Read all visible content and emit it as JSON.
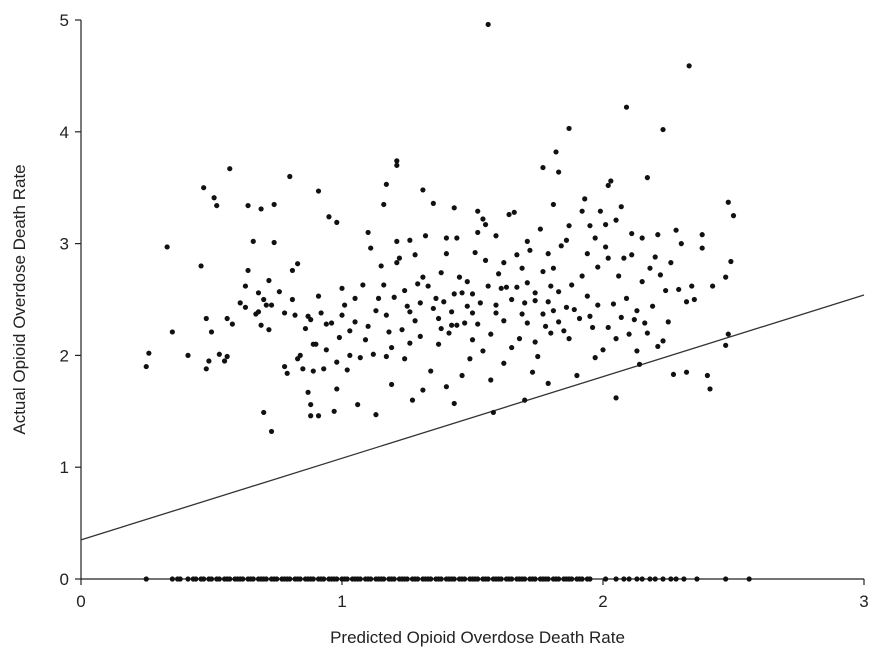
{
  "chart_data": {
    "type": "scatter",
    "title": "",
    "xlabel": "Predicted Opioid Overdose Death Rate",
    "ylabel": "Actual Opioid Overdose Death Rate",
    "xlim": [
      0,
      3
    ],
    "ylim": [
      0,
      5
    ],
    "x_ticks": [
      "0",
      "1",
      "2",
      "3"
    ],
    "y_ticks": [
      "0",
      "1",
      "2",
      "3",
      "4",
      "5"
    ],
    "grid": false,
    "legend": "none",
    "reference_line": {
      "x": [
        0,
        3
      ],
      "y": [
        0.35,
        2.54
      ]
    },
    "marker_color": "#111111",
    "line_color": "#333333",
    "points": [
      [
        0.25,
        1.9
      ],
      [
        0.26,
        2.02
      ],
      [
        0.33,
        2.97
      ],
      [
        0.35,
        2.21
      ],
      [
        0.41,
        2.0
      ],
      [
        0.46,
        2.8
      ],
      [
        0.47,
        3.5
      ],
      [
        0.48,
        2.33
      ],
      [
        0.48,
        1.88
      ],
      [
        0.49,
        1.95
      ],
      [
        0.5,
        2.21
      ],
      [
        0.51,
        3.41
      ],
      [
        0.52,
        3.34
      ],
      [
        0.53,
        2.01
      ],
      [
        0.55,
        1.95
      ],
      [
        0.56,
        1.99
      ],
      [
        0.56,
        2.33
      ],
      [
        0.57,
        3.67
      ],
      [
        0.58,
        2.28
      ],
      [
        0.61,
        2.47
      ],
      [
        0.63,
        2.43
      ],
      [
        0.63,
        2.62
      ],
      [
        0.64,
        3.34
      ],
      [
        0.64,
        2.76
      ],
      [
        0.66,
        3.02
      ],
      [
        0.67,
        2.37
      ],
      [
        0.68,
        2.56
      ],
      [
        0.68,
        2.39
      ],
      [
        0.69,
        3.31
      ],
      [
        0.69,
        2.27
      ],
      [
        0.7,
        1.49
      ],
      [
        0.7,
        2.5
      ],
      [
        0.71,
        2.45
      ],
      [
        0.72,
        2.23
      ],
      [
        0.72,
        2.67
      ],
      [
        0.73,
        2.45
      ],
      [
        0.73,
        1.32
      ],
      [
        0.74,
        3.01
      ],
      [
        0.74,
        3.35
      ],
      [
        0.76,
        2.57
      ],
      [
        0.78,
        2.38
      ],
      [
        0.78,
        1.9
      ],
      [
        0.79,
        1.84
      ],
      [
        0.8,
        3.6
      ],
      [
        0.81,
        2.76
      ],
      [
        0.81,
        2.5
      ],
      [
        0.82,
        2.36
      ],
      [
        0.83,
        2.82
      ],
      [
        0.83,
        1.97
      ],
      [
        0.84,
        2.0
      ],
      [
        0.85,
        1.88
      ],
      [
        0.86,
        2.24
      ],
      [
        0.87,
        2.35
      ],
      [
        0.87,
        1.67
      ],
      [
        0.88,
        1.56
      ],
      [
        0.88,
        1.46
      ],
      [
        0.88,
        2.32
      ],
      [
        0.89,
        2.1
      ],
      [
        0.89,
        1.86
      ],
      [
        0.9,
        2.1
      ],
      [
        0.91,
        2.53
      ],
      [
        0.91,
        3.47
      ],
      [
        0.91,
        1.46
      ],
      [
        0.92,
        2.38
      ],
      [
        0.93,
        1.88
      ],
      [
        0.94,
        2.28
      ],
      [
        0.94,
        2.05
      ],
      [
        0.95,
        3.24
      ],
      [
        0.96,
        2.29
      ],
      [
        0.97,
        1.5
      ],
      [
        0.98,
        1.94
      ],
      [
        0.98,
        1.7
      ],
      [
        0.98,
        3.19
      ],
      [
        0.99,
        2.16
      ],
      [
        1.0,
        2.36
      ],
      [
        1.0,
        2.6
      ],
      [
        1.01,
        2.45
      ],
      [
        1.02,
        1.87
      ],
      [
        1.03,
        2.22
      ],
      [
        1.03,
        2.0
      ],
      [
        1.05,
        2.3
      ],
      [
        1.05,
        2.51
      ],
      [
        1.06,
        1.56
      ],
      [
        1.07,
        1.98
      ],
      [
        1.08,
        2.63
      ],
      [
        1.09,
        2.14
      ],
      [
        1.1,
        2.26
      ],
      [
        1.1,
        3.1
      ],
      [
        1.11,
        2.96
      ],
      [
        1.12,
        2.01
      ],
      [
        1.13,
        1.47
      ],
      [
        1.13,
        2.4
      ],
      [
        1.14,
        2.51
      ],
      [
        1.15,
        2.8
      ],
      [
        1.16,
        3.35
      ],
      [
        1.16,
        2.63
      ],
      [
        1.17,
        2.36
      ],
      [
        1.17,
        3.53
      ],
      [
        1.17,
        1.99
      ],
      [
        1.18,
        2.21
      ],
      [
        1.19,
        2.07
      ],
      [
        1.19,
        1.74
      ],
      [
        1.2,
        2.52
      ],
      [
        1.21,
        3.7
      ],
      [
        1.21,
        3.74
      ],
      [
        1.21,
        2.83
      ],
      [
        1.21,
        3.02
      ],
      [
        1.22,
        2.87
      ],
      [
        1.23,
        2.23
      ],
      [
        1.24,
        1.97
      ],
      [
        1.24,
        2.58
      ],
      [
        1.25,
        2.44
      ],
      [
        1.26,
        2.11
      ],
      [
        1.26,
        2.39
      ],
      [
        1.26,
        3.03
      ],
      [
        1.27,
        1.6
      ],
      [
        1.28,
        2.31
      ],
      [
        1.28,
        2.9
      ],
      [
        1.29,
        2.64
      ],
      [
        1.3,
        2.17
      ],
      [
        1.3,
        2.47
      ],
      [
        1.31,
        1.69
      ],
      [
        1.31,
        2.7
      ],
      [
        1.31,
        3.48
      ],
      [
        1.32,
        3.07
      ],
      [
        1.33,
        2.62
      ],
      [
        1.34,
        1.86
      ],
      [
        1.35,
        2.42
      ],
      [
        1.35,
        3.36
      ],
      [
        1.36,
        2.51
      ],
      [
        1.37,
        2.33
      ],
      [
        1.37,
        2.1
      ],
      [
        1.38,
        2.74
      ],
      [
        1.38,
        2.24
      ],
      [
        1.39,
        2.48
      ],
      [
        1.4,
        1.72
      ],
      [
        1.4,
        3.05
      ],
      [
        1.4,
        2.91
      ],
      [
        1.41,
        2.2
      ],
      [
        1.42,
        2.27
      ],
      [
        1.42,
        2.39
      ],
      [
        1.43,
        1.57
      ],
      [
        1.43,
        3.32
      ],
      [
        1.43,
        2.55
      ],
      [
        1.44,
        2.27
      ],
      [
        1.44,
        3.05
      ],
      [
        1.45,
        2.7
      ],
      [
        1.46,
        2.56
      ],
      [
        1.46,
        1.82
      ],
      [
        1.47,
        2.29
      ],
      [
        1.48,
        2.44
      ],
      [
        1.48,
        2.66
      ],
      [
        1.49,
        1.97
      ],
      [
        1.5,
        2.14
      ],
      [
        1.5,
        2.38
      ],
      [
        1.5,
        2.55
      ],
      [
        1.51,
        2.92
      ],
      [
        1.52,
        2.28
      ],
      [
        1.52,
        3.1
      ],
      [
        1.52,
        3.29
      ],
      [
        1.53,
        2.47
      ],
      [
        1.54,
        3.22
      ],
      [
        1.54,
        2.04
      ],
      [
        1.55,
        2.85
      ],
      [
        1.55,
        3.17
      ],
      [
        1.56,
        4.96
      ],
      [
        1.56,
        2.62
      ],
      [
        1.57,
        1.78
      ],
      [
        1.57,
        2.19
      ],
      [
        1.58,
        1.49
      ],
      [
        1.59,
        2.45
      ],
      [
        1.59,
        2.38
      ],
      [
        1.59,
        3.07
      ],
      [
        1.6,
        2.73
      ],
      [
        1.61,
        2.6
      ],
      [
        1.62,
        2.83
      ],
      [
        1.62,
        2.31
      ],
      [
        1.62,
        1.93
      ],
      [
        1.63,
        2.61
      ],
      [
        1.64,
        3.26
      ],
      [
        1.65,
        2.5
      ],
      [
        1.65,
        2.07
      ],
      [
        1.66,
        3.28
      ],
      [
        1.67,
        2.9
      ],
      [
        1.67,
        2.61
      ],
      [
        1.68,
        2.15
      ],
      [
        1.69,
        2.37
      ],
      [
        1.69,
        2.78
      ],
      [
        1.7,
        2.47
      ],
      [
        1.7,
        1.6
      ],
      [
        1.71,
        3.02
      ],
      [
        1.71,
        2.65
      ],
      [
        1.71,
        2.29
      ],
      [
        1.72,
        2.94
      ],
      [
        1.73,
        1.85
      ],
      [
        1.74,
        2.49
      ],
      [
        1.74,
        2.56
      ],
      [
        1.74,
        2.12
      ],
      [
        1.75,
        1.99
      ],
      [
        1.76,
        3.13
      ],
      [
        1.77,
        2.75
      ],
      [
        1.77,
        2.37
      ],
      [
        1.77,
        3.68
      ],
      [
        1.78,
        2.26
      ],
      [
        1.79,
        2.91
      ],
      [
        1.79,
        2.48
      ],
      [
        1.79,
        1.75
      ],
      [
        1.8,
        2.2
      ],
      [
        1.8,
        2.62
      ],
      [
        1.81,
        2.4
      ],
      [
        1.81,
        3.35
      ],
      [
        1.81,
        2.78
      ],
      [
        1.82,
        3.82
      ],
      [
        1.83,
        3.64
      ],
      [
        1.83,
        2.57
      ],
      [
        1.83,
        2.3
      ],
      [
        1.84,
        2.98
      ],
      [
        1.85,
        2.22
      ],
      [
        1.86,
        2.43
      ],
      [
        1.86,
        3.03
      ],
      [
        1.87,
        2.15
      ],
      [
        1.87,
        4.03
      ],
      [
        1.87,
        3.16
      ],
      [
        1.88,
        2.63
      ],
      [
        1.89,
        2.41
      ],
      [
        1.9,
        1.82
      ],
      [
        1.91,
        2.33
      ],
      [
        1.92,
        2.71
      ],
      [
        1.92,
        3.29
      ],
      [
        1.93,
        3.4
      ],
      [
        1.94,
        2.53
      ],
      [
        1.94,
        2.91
      ],
      [
        1.95,
        2.35
      ],
      [
        1.95,
        3.16
      ],
      [
        1.96,
        2.25
      ],
      [
        1.97,
        1.98
      ],
      [
        1.97,
        3.05
      ],
      [
        1.98,
        2.79
      ],
      [
        1.98,
        2.45
      ],
      [
        1.99,
        3.29
      ],
      [
        2.0,
        2.05
      ],
      [
        2.01,
        2.97
      ],
      [
        2.01,
        3.17
      ],
      [
        2.02,
        2.25
      ],
      [
        2.02,
        3.52
      ],
      [
        2.02,
        2.87
      ],
      [
        2.03,
        3.56
      ],
      [
        2.04,
        2.46
      ],
      [
        2.05,
        2.15
      ],
      [
        2.05,
        1.62
      ],
      [
        2.05,
        3.21
      ],
      [
        2.06,
        2.71
      ],
      [
        2.07,
        2.34
      ],
      [
        2.07,
        3.33
      ],
      [
        2.08,
        2.87
      ],
      [
        2.09,
        4.22
      ],
      [
        2.09,
        2.51
      ],
      [
        2.1,
        2.19
      ],
      [
        2.11,
        2.9
      ],
      [
        2.11,
        3.09
      ],
      [
        2.12,
        2.32
      ],
      [
        2.13,
        2.4
      ],
      [
        2.13,
        2.04
      ],
      [
        2.14,
        1.92
      ],
      [
        2.15,
        2.66
      ],
      [
        2.15,
        3.05
      ],
      [
        2.16,
        2.29
      ],
      [
        2.17,
        2.2
      ],
      [
        2.17,
        3.59
      ],
      [
        2.18,
        2.78
      ],
      [
        2.19,
        2.44
      ],
      [
        2.2,
        2.88
      ],
      [
        2.21,
        2.08
      ],
      [
        2.21,
        3.08
      ],
      [
        2.22,
        2.72
      ],
      [
        2.23,
        4.02
      ],
      [
        2.23,
        2.13
      ],
      [
        2.24,
        2.58
      ],
      [
        2.25,
        2.3
      ],
      [
        2.26,
        2.83
      ],
      [
        2.27,
        1.83
      ],
      [
        2.28,
        3.12
      ],
      [
        2.29,
        2.59
      ],
      [
        2.3,
        3.0
      ],
      [
        2.32,
        1.85
      ],
      [
        2.32,
        2.48
      ],
      [
        2.33,
        4.59
      ],
      [
        2.34,
        2.62
      ],
      [
        2.35,
        2.5
      ],
      [
        2.38,
        3.08
      ],
      [
        2.38,
        2.96
      ],
      [
        2.4,
        1.82
      ],
      [
        2.41,
        1.7
      ],
      [
        2.42,
        2.62
      ],
      [
        2.47,
        2.7
      ],
      [
        2.47,
        2.09
      ],
      [
        2.48,
        3.37
      ],
      [
        2.48,
        2.19
      ],
      [
        2.49,
        2.84
      ],
      [
        2.5,
        3.25
      ],
      [
        0.25,
        0
      ],
      [
        0.35,
        0
      ],
      [
        0.37,
        0
      ],
      [
        0.38,
        0
      ],
      [
        0.41,
        0
      ],
      [
        0.43,
        0
      ],
      [
        0.44,
        0
      ],
      [
        0.46,
        0
      ],
      [
        0.47,
        0
      ],
      [
        0.49,
        0
      ],
      [
        0.5,
        0
      ],
      [
        0.52,
        0
      ],
      [
        0.53,
        0
      ],
      [
        0.55,
        0
      ],
      [
        0.56,
        0
      ],
      [
        0.57,
        0
      ],
      [
        0.59,
        0
      ],
      [
        0.6,
        0
      ],
      [
        0.61,
        0
      ],
      [
        0.62,
        0
      ],
      [
        0.64,
        0
      ],
      [
        0.65,
        0
      ],
      [
        0.66,
        0
      ],
      [
        0.68,
        0
      ],
      [
        0.69,
        0
      ],
      [
        0.7,
        0
      ],
      [
        0.71,
        0
      ],
      [
        0.73,
        0
      ],
      [
        0.74,
        0
      ],
      [
        0.75,
        0
      ],
      [
        0.77,
        0
      ],
      [
        0.78,
        0
      ],
      [
        0.79,
        0
      ],
      [
        0.8,
        0
      ],
      [
        0.82,
        0
      ],
      [
        0.83,
        0
      ],
      [
        0.84,
        0
      ],
      [
        0.86,
        0
      ],
      [
        0.87,
        0
      ],
      [
        0.88,
        0
      ],
      [
        0.89,
        0
      ],
      [
        0.91,
        0
      ],
      [
        0.92,
        0
      ],
      [
        0.93,
        0
      ],
      [
        0.95,
        0
      ],
      [
        0.96,
        0
      ],
      [
        0.97,
        0
      ],
      [
        0.98,
        0
      ],
      [
        1.0,
        0
      ],
      [
        1.01,
        0
      ],
      [
        1.02,
        0
      ],
      [
        1.04,
        0
      ],
      [
        1.05,
        0
      ],
      [
        1.06,
        0
      ],
      [
        1.07,
        0
      ],
      [
        1.09,
        0
      ],
      [
        1.1,
        0
      ],
      [
        1.11,
        0
      ],
      [
        1.13,
        0
      ],
      [
        1.14,
        0
      ],
      [
        1.15,
        0
      ],
      [
        1.16,
        0
      ],
      [
        1.18,
        0
      ],
      [
        1.19,
        0
      ],
      [
        1.2,
        0
      ],
      [
        1.22,
        0
      ],
      [
        1.23,
        0
      ],
      [
        1.24,
        0
      ],
      [
        1.25,
        0
      ],
      [
        1.27,
        0
      ],
      [
        1.28,
        0
      ],
      [
        1.29,
        0
      ],
      [
        1.31,
        0
      ],
      [
        1.32,
        0
      ],
      [
        1.33,
        0
      ],
      [
        1.34,
        0
      ],
      [
        1.36,
        0
      ],
      [
        1.37,
        0
      ],
      [
        1.38,
        0
      ],
      [
        1.4,
        0
      ],
      [
        1.41,
        0
      ],
      [
        1.42,
        0
      ],
      [
        1.43,
        0
      ],
      [
        1.45,
        0
      ],
      [
        1.46,
        0
      ],
      [
        1.47,
        0
      ],
      [
        1.49,
        0
      ],
      [
        1.5,
        0
      ],
      [
        1.51,
        0
      ],
      [
        1.52,
        0
      ],
      [
        1.54,
        0
      ],
      [
        1.55,
        0
      ],
      [
        1.56,
        0
      ],
      [
        1.58,
        0
      ],
      [
        1.59,
        0
      ],
      [
        1.6,
        0
      ],
      [
        1.61,
        0
      ],
      [
        1.63,
        0
      ],
      [
        1.64,
        0
      ],
      [
        1.65,
        0
      ],
      [
        1.67,
        0
      ],
      [
        1.68,
        0
      ],
      [
        1.69,
        0
      ],
      [
        1.7,
        0
      ],
      [
        1.72,
        0
      ],
      [
        1.73,
        0
      ],
      [
        1.74,
        0
      ],
      [
        1.76,
        0
      ],
      [
        1.77,
        0
      ],
      [
        1.78,
        0
      ],
      [
        1.79,
        0
      ],
      [
        1.81,
        0
      ],
      [
        1.82,
        0
      ],
      [
        1.83,
        0
      ],
      [
        1.85,
        0
      ],
      [
        1.86,
        0
      ],
      [
        1.87,
        0
      ],
      [
        1.88,
        0
      ],
      [
        1.9,
        0
      ],
      [
        1.91,
        0
      ],
      [
        1.92,
        0
      ],
      [
        1.94,
        0
      ],
      [
        1.95,
        0
      ],
      [
        2.01,
        0
      ],
      [
        2.05,
        0
      ],
      [
        2.08,
        0
      ],
      [
        2.1,
        0
      ],
      [
        2.13,
        0
      ],
      [
        2.15,
        0
      ],
      [
        2.18,
        0
      ],
      [
        2.2,
        0
      ],
      [
        2.23,
        0
      ],
      [
        2.26,
        0
      ],
      [
        2.28,
        0
      ],
      [
        2.31,
        0
      ],
      [
        2.36,
        0
      ],
      [
        2.47,
        0
      ],
      [
        2.56,
        0
      ]
    ]
  }
}
